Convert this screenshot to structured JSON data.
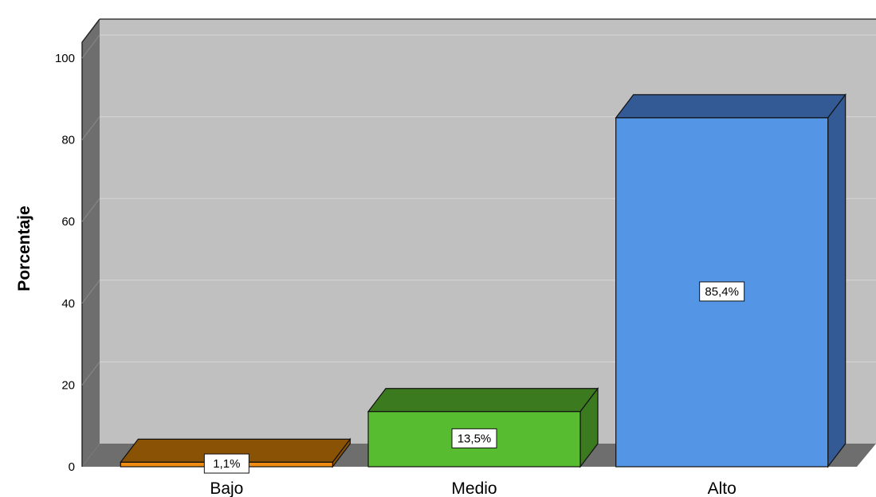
{
  "chart_data": {
    "type": "bar",
    "style": "3d",
    "categories": [
      "Bajo",
      "Medio",
      "Alto"
    ],
    "values": [
      1.1,
      13.5,
      85.4
    ],
    "data_labels": [
      "1,1%",
      "13,5%",
      "85,4%"
    ],
    "colors": [
      "#F08C10",
      "#58BC30",
      "#5595E5"
    ],
    "side_colors": [
      "#8A5204",
      "#3C7A20",
      "#335A95"
    ],
    "ylabel": "Porcentaje",
    "xlabel": "",
    "ylim": [
      0,
      100
    ],
    "yticks": [
      0,
      20,
      40,
      60,
      80,
      100
    ],
    "grid": true,
    "background_color": "#C0C0C0"
  }
}
